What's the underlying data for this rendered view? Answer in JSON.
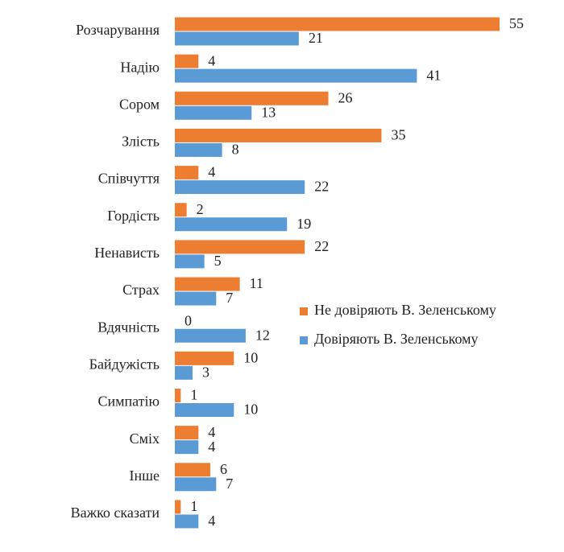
{
  "chart_data": {
    "type": "bar",
    "orientation": "horizontal",
    "categories": [
      "Розчарування",
      "Надію",
      "Сором",
      "Злість",
      "Співчуття",
      "Гордість",
      "Ненависть",
      "Страх",
      "Вдячність",
      "Байдужість",
      "Симпатію",
      "Сміх",
      "Інше",
      "Важко сказати"
    ],
    "series": [
      {
        "name": "Не довіряють В. Зеленському",
        "color": "#ed7d31",
        "values": [
          55,
          4,
          26,
          35,
          4,
          2,
          22,
          11,
          0,
          10,
          1,
          4,
          6,
          1
        ]
      },
      {
        "name": "Довіряють В. Зеленському",
        "color": "#5b9bd5",
        "values": [
          21,
          41,
          13,
          8,
          22,
          19,
          5,
          7,
          12,
          3,
          10,
          4,
          7,
          4
        ]
      }
    ],
    "legend": "right"
  }
}
